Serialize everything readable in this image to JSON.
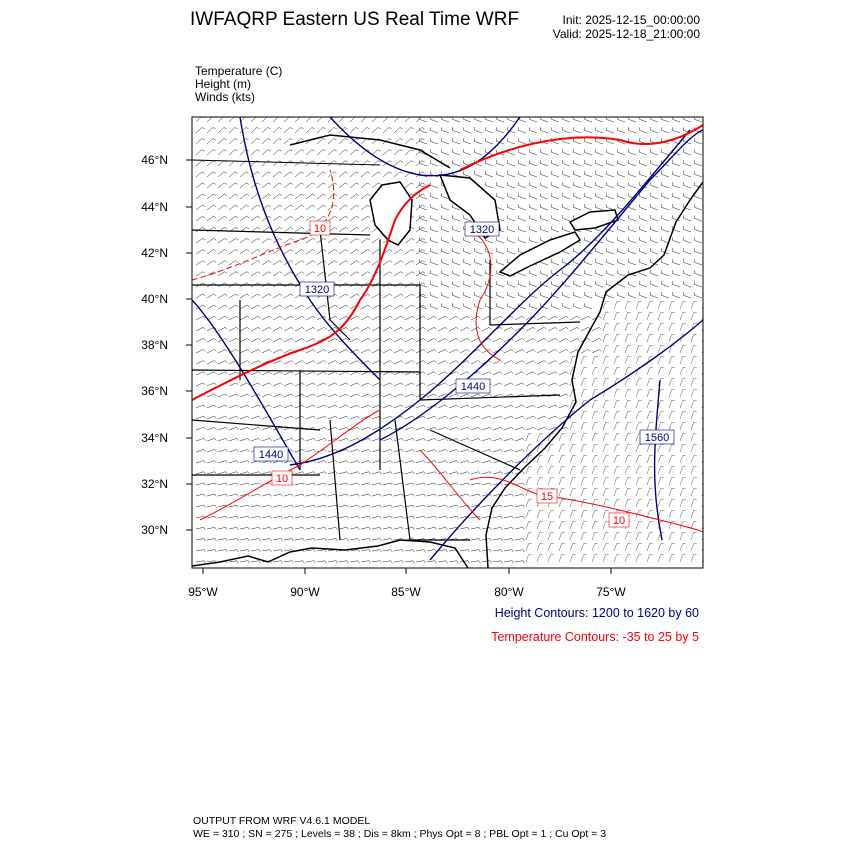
{
  "header": {
    "title": "IWFAQRP Eastern US Real Time WRF",
    "init": "Init: 2025-12-15_00:00:00",
    "valid": "Valid: 2025-12-18_21:00:00"
  },
  "fields": [
    "Temperature   (C)",
    "Height   (m)",
    "Winds   (kts)"
  ],
  "map": {
    "projection": "lambert-conformal",
    "lat_ticks": [
      "46°N",
      "44°N",
      "42°N",
      "40°N",
      "38°N",
      "36°N",
      "34°N",
      "32°N",
      "30°N"
    ],
    "lon_ticks": [
      "95°W",
      "90°W",
      "85°W",
      "80°W",
      "75°W"
    ],
    "height_labels": [
      "1320",
      "1320",
      "1440",
      "1440",
      "1560"
    ],
    "temperature_labels": [
      "10",
      "10",
      "15",
      "10"
    ],
    "colors": {
      "height": "#000080",
      "temperature": "#ff0000",
      "boundaries": "#000000"
    }
  },
  "legend": {
    "height": "Height Contours: 1200 to 1620 by 60",
    "temperature": "Temperature Contours: -35 to 25 by 5"
  },
  "footer": {
    "line1": "OUTPUT FROM WRF V4.6.1 MODEL",
    "line2": "WE = 310 ; SN = 275 ; Levels = 38 ; Dis = 8km ; Phys Opt = 8 ; PBL Opt = 1 ; Cu Opt = 3"
  }
}
